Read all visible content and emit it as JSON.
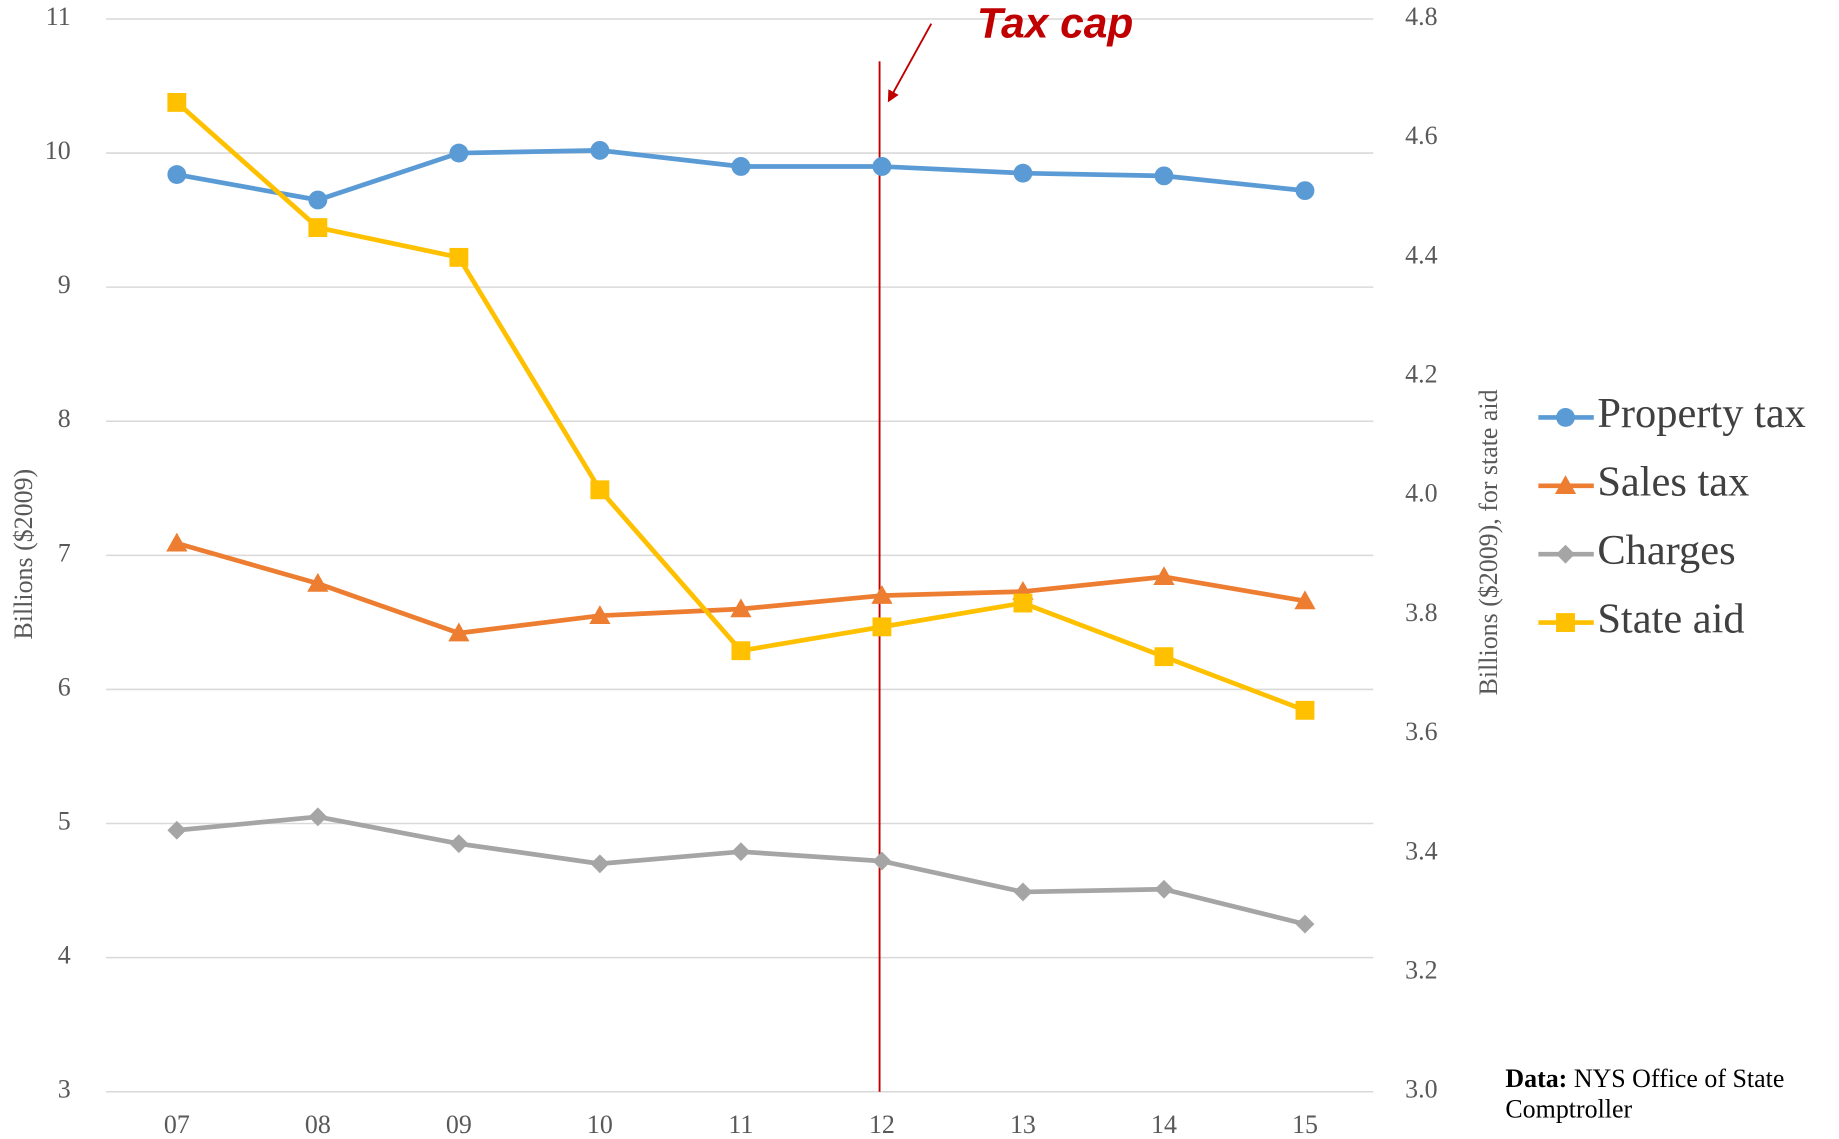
{
  "chart_data": {
    "type": "line",
    "categories": [
      "07",
      "08",
      "09",
      "10",
      "11",
      "12",
      "13",
      "14",
      "15"
    ],
    "series": [
      {
        "name": "Property tax",
        "color": "#5b9bd5",
        "marker": "circle",
        "values": [
          9.84,
          9.65,
          10.0,
          10.02,
          9.9,
          9.9,
          9.85,
          9.83,
          9.72
        ]
      },
      {
        "name": "Sales tax",
        "color": "#ed7d31",
        "marker": "triangle",
        "values": [
          7.09,
          6.79,
          6.42,
          6.55,
          6.6,
          6.7,
          6.73,
          6.84,
          6.66
        ]
      },
      {
        "name": "Charges",
        "color": "#a5a5a5",
        "marker": "diamond",
        "values": [
          4.95,
          5.05,
          4.85,
          4.7,
          4.79,
          4.72,
          4.49,
          4.51,
          4.25
        ]
      },
      {
        "name": "State aid",
        "color": "#ffc000",
        "marker": "square",
        "axis": "y2",
        "values": [
          4.66,
          4.45,
          4.4,
          4.01,
          3.74,
          3.78,
          3.82,
          3.73,
          3.64
        ]
      }
    ],
    "y_label": "Billions ($2009)",
    "y2_label": "Billions ($2009), for state aid",
    "ylim": [
      3,
      11
    ],
    "yticks": [
      3,
      4,
      5,
      6,
      7,
      8,
      9,
      10,
      11
    ],
    "y2lim": [
      3.0,
      4.8
    ],
    "y2ticks": [
      {
        "value": 3.0,
        "label": "3.0"
      },
      3.2,
      3.4,
      3.6,
      3.8,
      {
        "value": 4.0,
        "label": "4.0"
      },
      4.2,
      4.4,
      4.6,
      4.8
    ],
    "grid": true,
    "legend": "right",
    "annotation": {
      "text": "Tax cap",
      "x": "12",
      "color": "#c00000"
    },
    "source_label": "Data:",
    "source": "NYS Office of State Comptroller"
  }
}
